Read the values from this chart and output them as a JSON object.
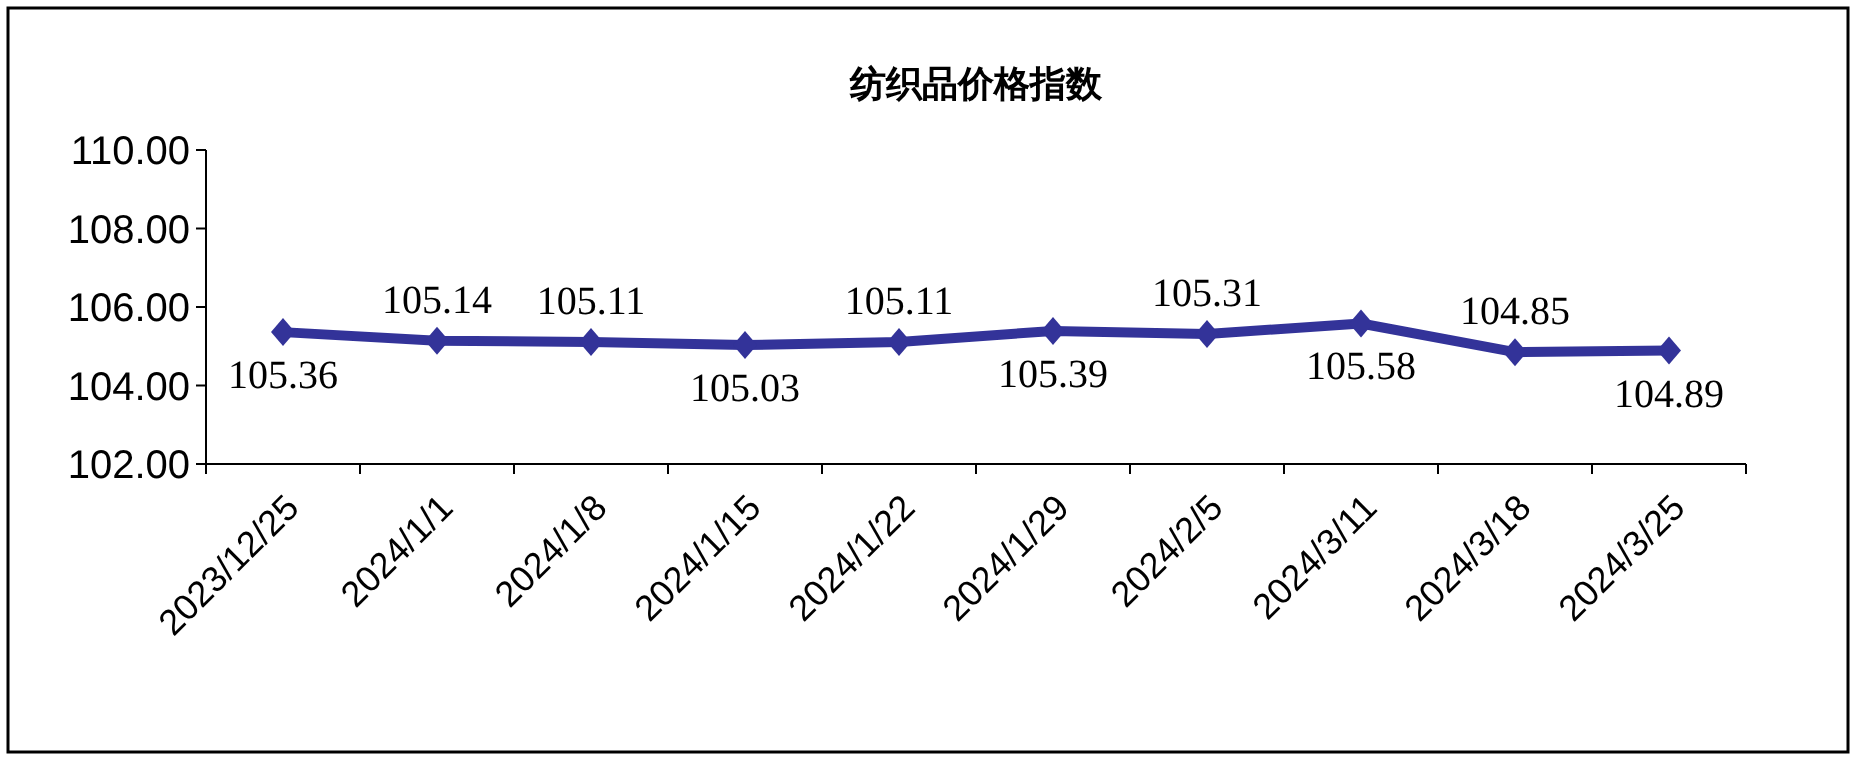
{
  "chart_data": {
    "type": "line",
    "title": "纺织品价格指数",
    "categories": [
      "2023/12/25",
      "2024/1/1",
      "2024/1/8",
      "2024/1/15",
      "2024/1/22",
      "2024/1/29",
      "2024/2/5",
      "2024/3/11",
      "2024/3/18",
      "2024/3/25"
    ],
    "series": [
      {
        "color": "#333399",
        "values": [
          105.36,
          105.14,
          105.11,
          105.03,
          105.11,
          105.39,
          105.31,
          105.58,
          104.85,
          104.89
        ]
      }
    ],
    "ylim": [
      102,
      110
    ],
    "yticks": [
      {
        "value": 102,
        "label": "102.00"
      },
      {
        "value": 104,
        "label": "104.00"
      },
      {
        "value": 106,
        "label": "106.00"
      },
      {
        "value": 108,
        "label": "108.00"
      },
      {
        "value": 110,
        "label": "110.00"
      }
    ],
    "data_labels": true,
    "marker": "diamond",
    "grid": false
  }
}
